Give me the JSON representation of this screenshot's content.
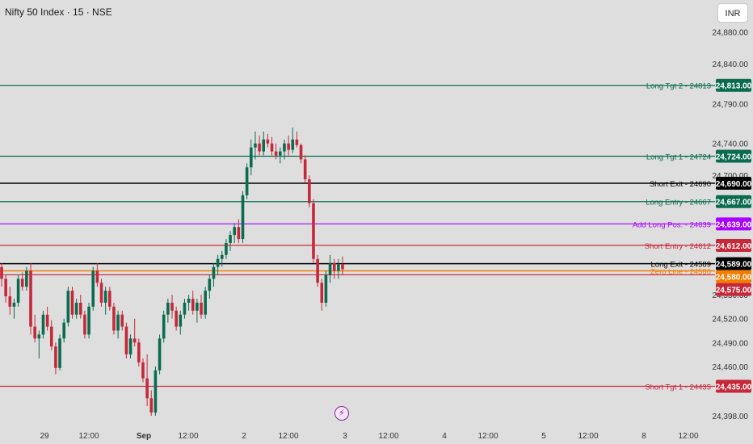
{
  "header": {
    "title": "Nifty 50 Index · 15 · NSE",
    "currency": "INR"
  },
  "colors": {
    "background": "#dedede",
    "bull": "#0b6b4f",
    "bear": "#c6283a",
    "target_line": "#0b6b4f",
    "exit_line": "#000000",
    "add_line": "#aa00ff",
    "short_line": "#c6283a",
    "zero_line": "#f57c00"
  },
  "events": {
    "icon": "lightning-bolt-icon"
  },
  "chart_data": {
    "type": "candlestick",
    "ylim": [
      24398,
      24905
    ],
    "y_ticks": [
      "24,880.00",
      "24,840.00",
      "24,790.00",
      "24,740.00",
      "24,700.00",
      "24,550.00",
      "24,520.00",
      "24,490.00",
      "24,460.00",
      "24,398.00"
    ],
    "x_ticks": [
      "29",
      "12:00",
      "Sep",
      "12:00",
      "2",
      "12:00",
      "3",
      "12:00",
      "4",
      "12:00",
      "5",
      "12:00",
      "8",
      "12:00"
    ],
    "levels": [
      {
        "label": "Long Tgt 2 - 24813",
        "price": 24813,
        "badge": "24,813.00",
        "color": "#0b6b4f"
      },
      {
        "label": "Long Tgt 1 - 24724",
        "price": 24724,
        "badge": "24,724.00",
        "color": "#0b6b4f"
      },
      {
        "label": "Short Exit - 24690",
        "price": 24690,
        "badge": "24,690.00",
        "color": "#000000"
      },
      {
        "label": "Long Entry - 24667",
        "price": 24667,
        "badge": "24,667.00",
        "color": "#0b6b4f"
      },
      {
        "label": "Add Long Pos. - 24639",
        "price": 24639,
        "badge": "24,639.00",
        "color": "#aa00ff"
      },
      {
        "label": "",
        "price": 24612,
        "badge": "24,612.00",
        "color": "#c6283a"
      },
      {
        "label": "Short Entry - 24612",
        "price": 24612,
        "badge": "",
        "color": "#c6283a"
      },
      {
        "label": "Long Exit - 24589",
        "price": 24589,
        "badge": "24,589.00",
        "color": "#000000"
      },
      {
        "label": "",
        "price": 24580,
        "badge": "24,580.00",
        "color": "#f57c00"
      },
      {
        "label": "Zero Line - 24580",
        "price": 24580,
        "badge": "",
        "color": "#f57c00"
      },
      {
        "label": "",
        "price": 24575,
        "badge": "24,575.00",
        "color": "#c6283a"
      },
      {
        "label": "Short Tgt 1 - 24435",
        "price": 24435,
        "badge": "24,435.00",
        "color": "#c6283a"
      }
    ],
    "candles": [
      [
        24585,
        24590,
        24560,
        24570
      ],
      [
        24570,
        24575,
        24540,
        24548
      ],
      [
        24548,
        24560,
        24525,
        24535
      ],
      [
        24535,
        24545,
        24520,
        24540
      ],
      [
        24540,
        24575,
        24535,
        24570
      ],
      [
        24570,
        24578,
        24555,
        24560
      ],
      [
        24560,
        24585,
        24555,
        24580
      ],
      [
        24580,
        24590,
        24500,
        24510
      ],
      [
        24510,
        24525,
        24490,
        24495
      ],
      [
        24495,
        24505,
        24470,
        24500
      ],
      [
        24500,
        24530,
        24495,
        24525
      ],
      [
        24525,
        24535,
        24505,
        24510
      ],
      [
        24510,
        24518,
        24480,
        24485
      ],
      [
        24485,
        24490,
        24450,
        24458
      ],
      [
        24458,
        24500,
        24455,
        24495
      ],
      [
        24495,
        24520,
        24490,
        24515
      ],
      [
        24515,
        24560,
        24510,
        24555
      ],
      [
        24555,
        24560,
        24520,
        24525
      ],
      [
        24525,
        24545,
        24520,
        24540
      ],
      [
        24540,
        24550,
        24520,
        24525
      ],
      [
        24525,
        24530,
        24495,
        24500
      ],
      [
        24500,
        24540,
        24495,
        24535
      ],
      [
        24535,
        24585,
        24530,
        24580
      ],
      [
        24580,
        24590,
        24560,
        24565
      ],
      [
        24565,
        24570,
        24535,
        24540
      ],
      [
        24540,
        24560,
        24525,
        24555
      ],
      [
        24555,
        24560,
        24530,
        24535
      ],
      [
        24535,
        24540,
        24500,
        24505
      ],
      [
        24505,
        24530,
        24495,
        24525
      ],
      [
        24525,
        24530,
        24505,
        24510
      ],
      [
        24510,
        24515,
        24470,
        24475
      ],
      [
        24475,
        24500,
        24470,
        24495
      ],
      [
        24495,
        24520,
        24485,
        24490
      ],
      [
        24490,
        24495,
        24460,
        24465
      ],
      [
        24465,
        24470,
        24440,
        24445
      ],
      [
        24445,
        24475,
        24410,
        24420
      ],
      [
        24420,
        24430,
        24398,
        24402
      ],
      [
        24402,
        24460,
        24398,
        24455
      ],
      [
        24455,
        24500,
        24450,
        24495
      ],
      [
        24495,
        24530,
        24490,
        24525
      ],
      [
        24525,
        24545,
        24515,
        24540
      ],
      [
        24540,
        24550,
        24520,
        24530
      ],
      [
        24530,
        24535,
        24505,
        24510
      ],
      [
        24510,
        24530,
        24500,
        24525
      ],
      [
        24525,
        24545,
        24520,
        24540
      ],
      [
        24540,
        24550,
        24530,
        24545
      ],
      [
        24545,
        24555,
        24525,
        24530
      ],
      [
        24530,
        24545,
        24515,
        24540
      ],
      [
        24540,
        24550,
        24520,
        24525
      ],
      [
        24525,
        24560,
        24520,
        24555
      ],
      [
        24555,
        24575,
        24545,
        24570
      ],
      [
        24570,
        24590,
        24560,
        24585
      ],
      [
        24585,
        24600,
        24575,
        24595
      ],
      [
        24595,
        24605,
        24585,
        24600
      ],
      [
        24600,
        24620,
        24595,
        24615
      ],
      [
        24615,
        24630,
        24605,
        24625
      ],
      [
        24625,
        24640,
        24615,
        24635
      ],
      [
        24635,
        24645,
        24615,
        24620
      ],
      [
        24620,
        24680,
        24615,
        24675
      ],
      [
        24675,
        24715,
        24670,
        24710
      ],
      [
        24710,
        24745,
        24700,
        24735
      ],
      [
        24735,
        24755,
        24720,
        24740
      ],
      [
        24740,
        24750,
        24725,
        24730
      ],
      [
        24730,
        24755,
        24725,
        24745
      ],
      [
        24745,
        24752,
        24735,
        24740
      ],
      [
        24740,
        24748,
        24725,
        24730
      ],
      [
        24730,
        24740,
        24720,
        24725
      ],
      [
        24725,
        24735,
        24715,
        24730
      ],
      [
        24730,
        24745,
        24720,
        24740
      ],
      [
        24740,
        24750,
        24725,
        24732
      ],
      [
        24732,
        24760,
        24728,
        24745
      ],
      [
        24745,
        24755,
        24735,
        24738
      ],
      [
        24738,
        24740,
        24715,
        24720
      ],
      [
        24720,
        24725,
        24690,
        24695
      ],
      [
        24695,
        24700,
        24660,
        24665
      ],
      [
        24665,
        24670,
        24590,
        24595
      ],
      [
        24595,
        24600,
        24560,
        24565
      ],
      [
        24565,
        24570,
        24530,
        24540
      ],
      [
        24540,
        24580,
        24535,
        24575
      ],
      [
        24575,
        24600,
        24565,
        24590
      ],
      [
        24590,
        24595,
        24570,
        24580
      ],
      [
        24580,
        24595,
        24570,
        24588
      ],
      [
        24588,
        24598,
        24575,
        24582
      ]
    ]
  }
}
